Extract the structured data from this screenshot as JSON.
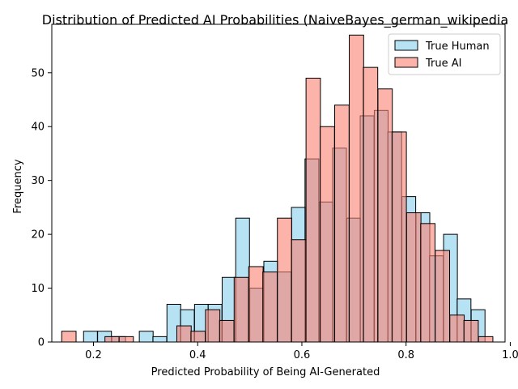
{
  "chart_data": {
    "type": "histogram",
    "title": "Distribution of Predicted AI Probabilities (NaiveBayes_german_wikipedia",
    "xlabel": "Predicted Probability of Being AI-Generated",
    "ylabel": "Frequency",
    "xlim": [
      0.12,
      0.99
    ],
    "ylim": [
      0,
      59
    ],
    "xticks": [
      0.2,
      0.4,
      0.6,
      0.8,
      1.0
    ],
    "xtick_labels": [
      "0.2",
      "0.4",
      "0.6",
      "0.8",
      "1.0"
    ],
    "yticks": [
      0,
      10,
      20,
      30,
      40,
      50
    ],
    "ytick_labels": [
      "0",
      "10",
      "20",
      "30",
      "40",
      "50"
    ],
    "legend_position": "top-right",
    "series": [
      {
        "name": "True Human",
        "color": "#87ceeb",
        "bin_width": 0.0265,
        "bins": [
          {
            "x0": 0.181,
            "count": 2
          },
          {
            "x0": 0.208,
            "count": 2
          },
          {
            "x0": 0.235,
            "count": 1
          },
          {
            "x0": 0.261,
            "count": 0
          },
          {
            "x0": 0.288,
            "count": 2
          },
          {
            "x0": 0.314,
            "count": 1
          },
          {
            "x0": 0.341,
            "count": 7
          },
          {
            "x0": 0.367,
            "count": 6
          },
          {
            "x0": 0.394,
            "count": 7
          },
          {
            "x0": 0.42,
            "count": 7
          },
          {
            "x0": 0.447,
            "count": 12
          },
          {
            "x0": 0.473,
            "count": 23
          },
          {
            "x0": 0.5,
            "count": 10
          },
          {
            "x0": 0.527,
            "count": 15
          },
          {
            "x0": 0.553,
            "count": 13
          },
          {
            "x0": 0.58,
            "count": 25
          },
          {
            "x0": 0.606,
            "count": 34
          },
          {
            "x0": 0.633,
            "count": 26
          },
          {
            "x0": 0.659,
            "count": 36
          },
          {
            "x0": 0.686,
            "count": 23
          },
          {
            "x0": 0.712,
            "count": 42
          },
          {
            "x0": 0.739,
            "count": 43
          },
          {
            "x0": 0.765,
            "count": 39
          },
          {
            "x0": 0.792,
            "count": 27
          },
          {
            "x0": 0.819,
            "count": 24
          },
          {
            "x0": 0.845,
            "count": 16
          },
          {
            "x0": 0.872,
            "count": 20
          },
          {
            "x0": 0.898,
            "count": 8
          },
          {
            "x0": 0.925,
            "count": 6
          }
        ]
      },
      {
        "name": "True AI",
        "color": "#fa8072",
        "bin_width": 0.0276,
        "bins": [
          {
            "x0": 0.139,
            "count": 2
          },
          {
            "x0": 0.167,
            "count": 0
          },
          {
            "x0": 0.194,
            "count": 0
          },
          {
            "x0": 0.222,
            "count": 1
          },
          {
            "x0": 0.249,
            "count": 1
          },
          {
            "x0": 0.277,
            "count": 0
          },
          {
            "x0": 0.305,
            "count": 0
          },
          {
            "x0": 0.332,
            "count": 0
          },
          {
            "x0": 0.36,
            "count": 3
          },
          {
            "x0": 0.387,
            "count": 2
          },
          {
            "x0": 0.415,
            "count": 6
          },
          {
            "x0": 0.442,
            "count": 4
          },
          {
            "x0": 0.47,
            "count": 12
          },
          {
            "x0": 0.498,
            "count": 14
          },
          {
            "x0": 0.525,
            "count": 13
          },
          {
            "x0": 0.553,
            "count": 23
          },
          {
            "x0": 0.58,
            "count": 19
          },
          {
            "x0": 0.608,
            "count": 49
          },
          {
            "x0": 0.635,
            "count": 40
          },
          {
            "x0": 0.663,
            "count": 44
          },
          {
            "x0": 0.691,
            "count": 57
          },
          {
            "x0": 0.718,
            "count": 51
          },
          {
            "x0": 0.746,
            "count": 47
          },
          {
            "x0": 0.773,
            "count": 39
          },
          {
            "x0": 0.801,
            "count": 24
          },
          {
            "x0": 0.828,
            "count": 22
          },
          {
            "x0": 0.856,
            "count": 17
          },
          {
            "x0": 0.884,
            "count": 5
          },
          {
            "x0": 0.911,
            "count": 4
          },
          {
            "x0": 0.939,
            "count": 1
          }
        ]
      }
    ]
  }
}
